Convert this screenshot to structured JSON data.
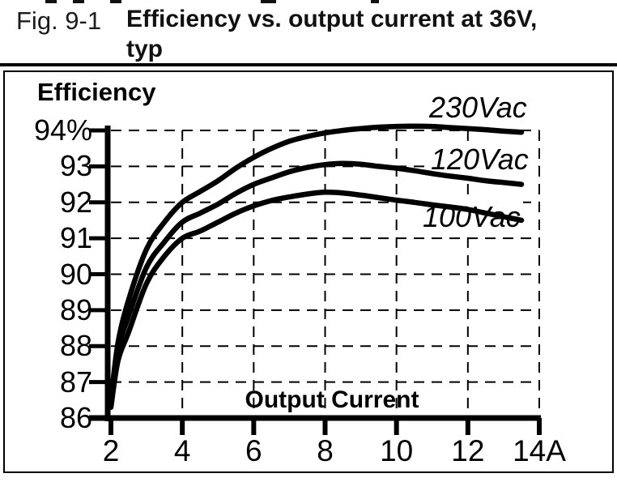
{
  "figure": {
    "label": "Fig. 9-1",
    "title_line1": "Efficiency vs. output current at 36V,",
    "title_line2": "typ"
  },
  "chart_data": {
    "type": "line",
    "title": "Efficiency vs. output current at 36V, typ",
    "ylabel": "Efficiency",
    "xlabel": "Output Current",
    "x_unit": "A",
    "y_unit": "%",
    "xlim": [
      2,
      14
    ],
    "ylim": [
      86,
      94
    ],
    "grid": "dashed",
    "legend_position": "labels-on-curves",
    "line_color": "#000000",
    "background": "#ffffff",
    "x_ticks": [
      2,
      4,
      6,
      8,
      10,
      12,
      14
    ],
    "x_tick_labels": [
      "2",
      "4",
      "6",
      "8",
      "10",
      "12",
      "14A"
    ],
    "y_ticks": [
      94,
      93,
      92,
      91,
      90,
      89,
      88,
      87,
      86
    ],
    "y_tick_labels": [
      "94%",
      "93",
      "92",
      "91",
      "90",
      "89",
      "88",
      "87",
      "86"
    ],
    "series": [
      {
        "name": "230Vac",
        "points": [
          [
            2,
            86.5
          ],
          [
            2.2,
            88.1
          ],
          [
            2.5,
            89.3
          ],
          [
            3,
            90.7
          ],
          [
            3.5,
            91.45
          ],
          [
            4,
            92.0
          ],
          [
            4.5,
            92.3
          ],
          [
            5,
            92.6
          ],
          [
            5.5,
            92.95
          ],
          [
            6,
            93.25
          ],
          [
            6.5,
            93.5
          ],
          [
            7,
            93.7
          ],
          [
            7.5,
            93.83
          ],
          [
            8,
            93.93
          ],
          [
            8.5,
            94.0
          ],
          [
            9,
            94.05
          ],
          [
            9.5,
            94.09
          ],
          [
            10,
            94.11
          ],
          [
            10.5,
            94.12
          ],
          [
            11,
            94.11
          ],
          [
            11.5,
            94.08
          ],
          [
            12,
            94.05
          ],
          [
            12.5,
            94.02
          ],
          [
            13,
            93.98
          ],
          [
            13.5,
            93.95
          ]
        ]
      },
      {
        "name": "120Vac",
        "points": [
          [
            2,
            86.4
          ],
          [
            2.2,
            87.9
          ],
          [
            2.5,
            88.85
          ],
          [
            3,
            90.2
          ],
          [
            3.5,
            90.9
          ],
          [
            4,
            91.45
          ],
          [
            4.5,
            91.7
          ],
          [
            5,
            91.95
          ],
          [
            5.5,
            92.25
          ],
          [
            6,
            92.5
          ],
          [
            6.5,
            92.68
          ],
          [
            7,
            92.85
          ],
          [
            7.5,
            92.97
          ],
          [
            8,
            93.05
          ],
          [
            8.5,
            93.08
          ],
          [
            9,
            93.06
          ],
          [
            9.5,
            93.0
          ],
          [
            10,
            92.95
          ],
          [
            10.5,
            92.88
          ],
          [
            11,
            92.8
          ],
          [
            11.5,
            92.73
          ],
          [
            12,
            92.67
          ],
          [
            12.5,
            92.6
          ],
          [
            13,
            92.55
          ],
          [
            13.5,
            92.5
          ]
        ]
      },
      {
        "name": "100Vac",
        "points": [
          [
            2,
            86.3
          ],
          [
            2.2,
            87.6
          ],
          [
            2.5,
            88.4
          ],
          [
            3,
            89.75
          ],
          [
            3.5,
            90.5
          ],
          [
            4,
            91.0
          ],
          [
            4.5,
            91.2
          ],
          [
            5,
            91.45
          ],
          [
            5.5,
            91.7
          ],
          [
            6,
            91.9
          ],
          [
            6.5,
            92.05
          ],
          [
            7,
            92.15
          ],
          [
            7.5,
            92.23
          ],
          [
            8,
            92.28
          ],
          [
            8.5,
            92.26
          ],
          [
            9,
            92.2
          ],
          [
            9.5,
            92.13
          ],
          [
            10,
            92.06
          ],
          [
            10.5,
            92.0
          ],
          [
            11,
            91.93
          ],
          [
            11.5,
            91.87
          ],
          [
            12,
            91.8
          ],
          [
            12.5,
            91.7
          ],
          [
            13,
            91.6
          ],
          [
            13.5,
            91.5
          ]
        ]
      }
    ]
  }
}
